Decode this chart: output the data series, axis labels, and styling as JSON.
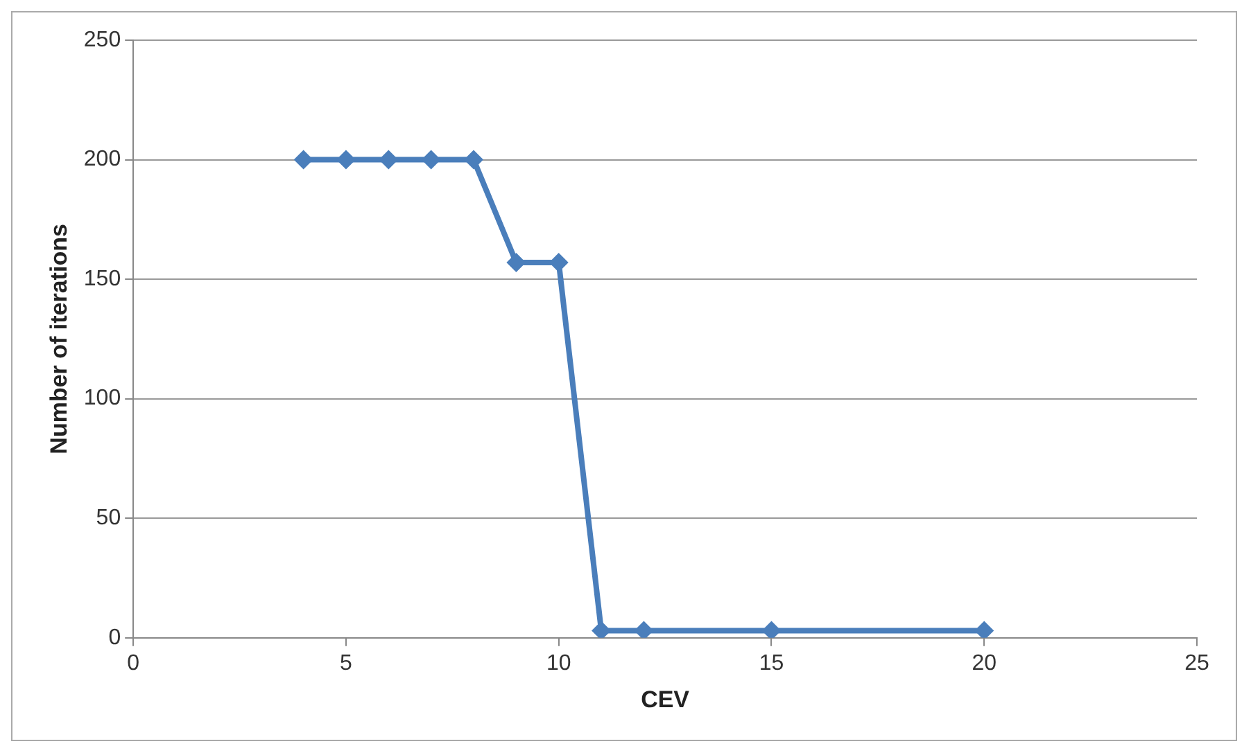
{
  "chart_data": {
    "type": "line",
    "xlabel": "CEV",
    "ylabel": "Number of iterations",
    "x": [
      4,
      5,
      6,
      7,
      8,
      9,
      10,
      11,
      12,
      15,
      20
    ],
    "series": [
      {
        "color": "#4a7ebb",
        "values": [
          200,
          200,
          200,
          200,
          200,
          157,
          157,
          3,
          3,
          3,
          3
        ]
      }
    ],
    "xlim": [
      0,
      25
    ],
    "xticks": [
      0,
      5,
      10,
      15,
      20,
      25
    ],
    "ylim": [
      0,
      250
    ],
    "yticks": [
      0,
      50,
      100,
      150,
      200,
      250
    ],
    "grid": "y",
    "legend": false,
    "marker": "diamond",
    "line_style": "solid"
  }
}
